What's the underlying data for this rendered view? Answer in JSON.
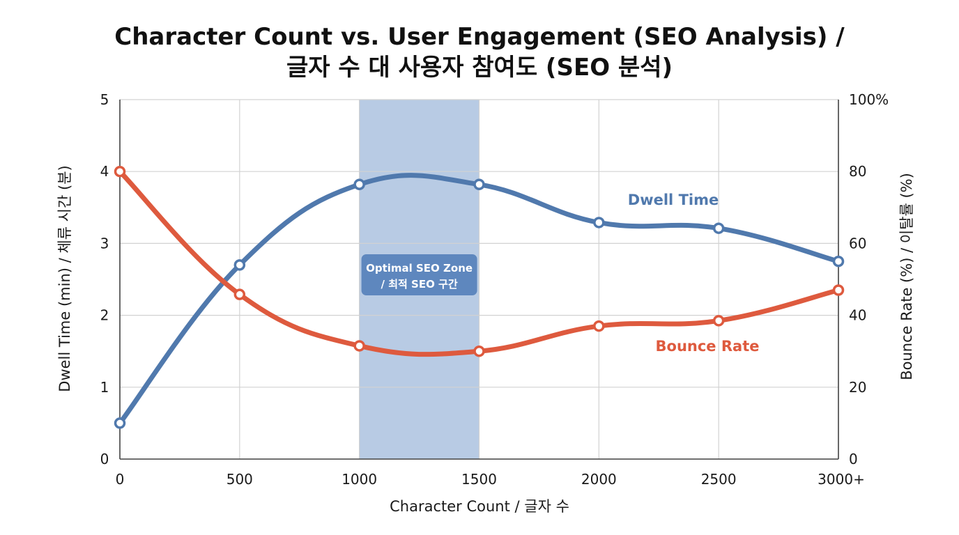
{
  "chart_data": {
    "type": "line",
    "title_line1": "Character Count vs. User Engagement (SEO Analysis) /",
    "title_line2": "글자 수 대 사용자 참여도 (SEO 분석)",
    "xlabel": "Character Count / 글자 수",
    "ylabel_left": "Dwell Time (min) / 체류 시간 (분)",
    "ylabel_right": "Bounce Rate (%) / 이탈률 (%)",
    "x": [
      0,
      500,
      1000,
      1500,
      2000,
      2500,
      3000
    ],
    "x_tick_labels": [
      "0",
      "500",
      "1000",
      "1500",
      "2000",
      "2500",
      "3000+"
    ],
    "ylim_left": [
      0,
      5
    ],
    "y_left_ticks": [
      "0",
      "1",
      "2",
      "3",
      "4",
      "5"
    ],
    "ylim_right": [
      0,
      100
    ],
    "y_right_ticks": [
      "0",
      "20",
      "40",
      "60",
      "80",
      "100%"
    ],
    "grid": true,
    "series": [
      {
        "name": "Dwell Time",
        "axis": "left",
        "color": "#5079ad",
        "values": [
          0.5,
          2.7,
          3.82,
          3.82,
          3.29,
          3.21,
          2.75
        ]
      },
      {
        "name": "Bounce Rate",
        "axis": "right",
        "color": "#de5a3e",
        "values": [
          80,
          45.8,
          31.5,
          30,
          37,
          38.5,
          47
        ]
      }
    ],
    "highlight_band": {
      "x_start": 1000,
      "x_end": 1500,
      "color": "#b8cbe4",
      "label_line1": "Optimal SEO Zone",
      "label_line2": "/ 최적 SEO 구간",
      "label_bg": "#5e87be"
    }
  }
}
